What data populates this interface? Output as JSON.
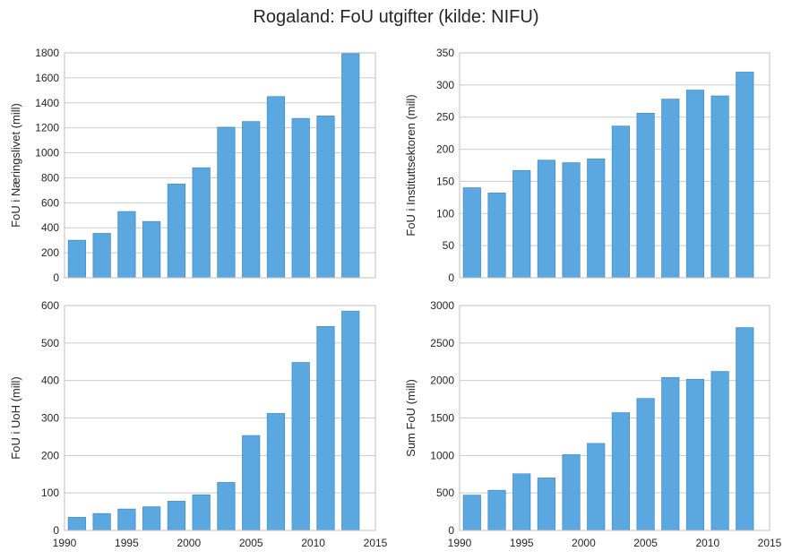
{
  "figure": {
    "title": "Rogaland: FoU utgifter (kilde: NIFU)"
  },
  "colors": {
    "bar_fill": "#5ba8e0",
    "bar_edge": "#4a8fc2",
    "grid": "#cccccc",
    "axis_frame": "#bfbfbf",
    "background": "#ffffff"
  },
  "chart_data": [
    {
      "type": "bar",
      "id": "naeringslivet",
      "title": "",
      "xlabel": "",
      "ylabel": "FoU i Næringslivet (mill)",
      "x": [
        1991,
        1993,
        1995,
        1997,
        1999,
        2001,
        2003,
        2005,
        2007,
        2009,
        2011,
        2013
      ],
      "values": [
        300,
        355,
        530,
        450,
        750,
        880,
        1205,
        1250,
        1450,
        1275,
        1295,
        1795
      ],
      "xlim": [
        1990,
        2015
      ],
      "ylim": [
        0,
        1800
      ],
      "yticks": [
        0,
        200,
        400,
        600,
        800,
        1000,
        1200,
        1400,
        1600,
        1800
      ],
      "xticks": [
        1990,
        1995,
        2000,
        2005,
        2010,
        2015
      ],
      "show_xtick_labels": false,
      "grid": true
    },
    {
      "type": "bar",
      "id": "instituttsektoren",
      "title": "",
      "xlabel": "",
      "ylabel": "FoU i Instituttsektoren (mill)",
      "x": [
        1991,
        1993,
        1995,
        1997,
        1999,
        2001,
        2003,
        2005,
        2007,
        2009,
        2011,
        2013
      ],
      "values": [
        140,
        132,
        167,
        183,
        179,
        185,
        236,
        256,
        278,
        292,
        283,
        320
      ],
      "xlim": [
        1990,
        2015
      ],
      "ylim": [
        0,
        350
      ],
      "yticks": [
        0,
        50,
        100,
        150,
        200,
        250,
        300,
        350
      ],
      "xticks": [
        1990,
        1995,
        2000,
        2005,
        2010,
        2015
      ],
      "show_xtick_labels": false,
      "grid": true
    },
    {
      "type": "bar",
      "id": "uoh",
      "title": "",
      "xlabel": "",
      "ylabel": "FoU i UoH (mill)",
      "x": [
        1991,
        1993,
        1995,
        1997,
        1999,
        2001,
        2003,
        2005,
        2007,
        2009,
        2011,
        2013
      ],
      "values": [
        35,
        45,
        57,
        63,
        78,
        95,
        128,
        253,
        312,
        448,
        544,
        585
      ],
      "xlim": [
        1990,
        2015
      ],
      "ylim": [
        0,
        600
      ],
      "yticks": [
        0,
        100,
        200,
        300,
        400,
        500,
        600
      ],
      "xticks": [
        1990,
        1995,
        2000,
        2005,
        2010,
        2015
      ],
      "show_xtick_labels": true,
      "grid": true
    },
    {
      "type": "bar",
      "id": "sum",
      "title": "",
      "xlabel": "",
      "ylabel": "Sum FoU (mill)",
      "x": [
        1991,
        1993,
        1995,
        1997,
        1999,
        2001,
        2003,
        2005,
        2007,
        2009,
        2011,
        2013
      ],
      "values": [
        470,
        535,
        755,
        700,
        1010,
        1160,
        1570,
        1760,
        2040,
        2015,
        2120,
        2705
      ],
      "xlim": [
        1990,
        2015
      ],
      "ylim": [
        0,
        3000
      ],
      "yticks": [
        0,
        500,
        1000,
        1500,
        2000,
        2500,
        3000
      ],
      "xticks": [
        1990,
        1995,
        2000,
        2005,
        2010,
        2015
      ],
      "show_xtick_labels": true,
      "grid": true
    }
  ]
}
